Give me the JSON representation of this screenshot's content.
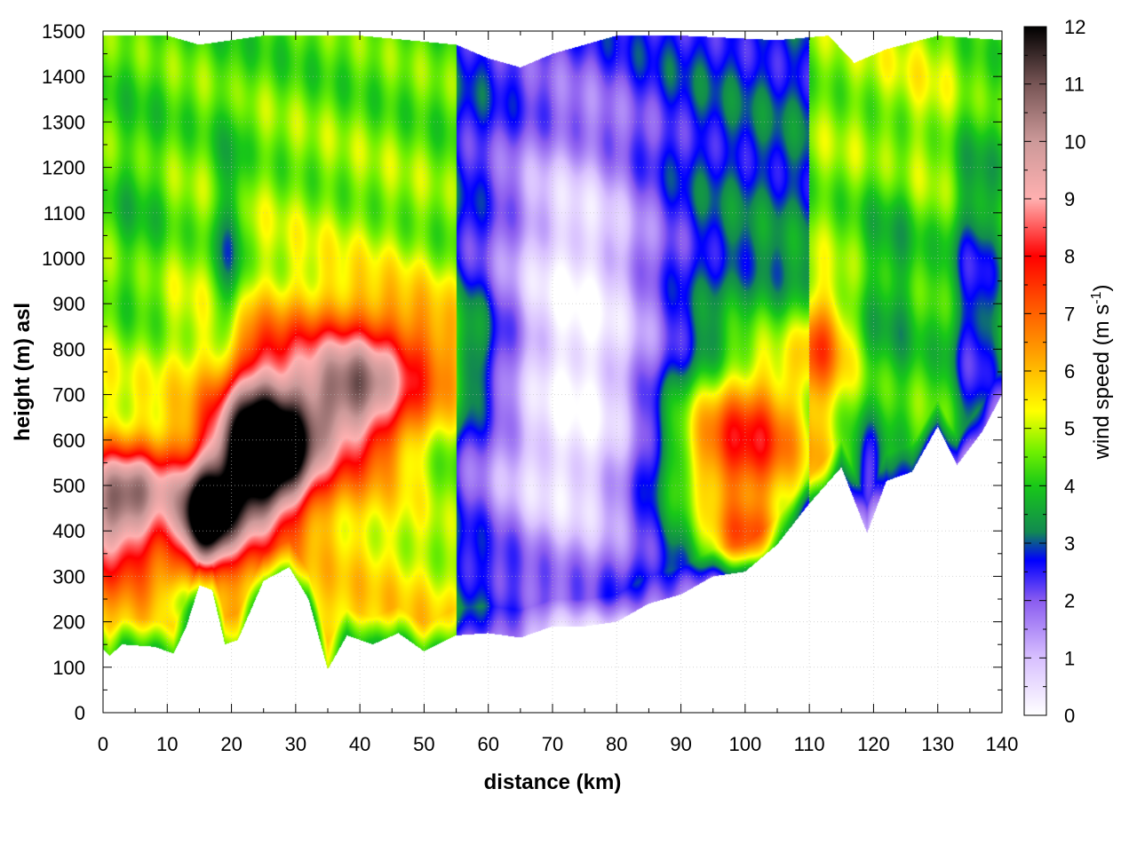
{
  "chart_data": {
    "type": "heatmap",
    "title": "",
    "xlabel": "distance (km)",
    "ylabel": "height (m) asl",
    "xlim": [
      0,
      140
    ],
    "ylim": [
      0,
      1500
    ],
    "x_ticks": [
      0,
      10,
      20,
      30,
      40,
      50,
      60,
      70,
      80,
      90,
      100,
      110,
      120,
      130,
      140
    ],
    "y_ticks": [
      0,
      100,
      200,
      300,
      400,
      500,
      600,
      700,
      800,
      900,
      1000,
      1100,
      1200,
      1300,
      1400,
      1500
    ],
    "grid": true,
    "colorbar": {
      "label": "wind speed (m s",
      "label_superscript": "-1",
      "label_close": ")",
      "range": [
        0,
        12
      ],
      "ticks": [
        0,
        1,
        2,
        3,
        4,
        5,
        6,
        7,
        8,
        9,
        10,
        11,
        12
      ],
      "colors": [
        {
          "v": 0,
          "c": "#ffffff"
        },
        {
          "v": 1,
          "c": "#d8c0ff"
        },
        {
          "v": 2,
          "c": "#8a5cf0"
        },
        {
          "v": 2.7,
          "c": "#0000ff"
        },
        {
          "v": 3.2,
          "c": "#128a50"
        },
        {
          "v": 4,
          "c": "#18c818"
        },
        {
          "v": 4.6,
          "c": "#70f000"
        },
        {
          "v": 5.3,
          "c": "#ffff00"
        },
        {
          "v": 6.3,
          "c": "#ffa000"
        },
        {
          "v": 7.2,
          "c": "#ff5000"
        },
        {
          "v": 8,
          "c": "#ff0000"
        },
        {
          "v": 9,
          "c": "#ffb0b0"
        },
        {
          "v": 10,
          "c": "#cc9999"
        },
        {
          "v": 11,
          "c": "#775555"
        },
        {
          "v": 12,
          "c": "#000000"
        }
      ]
    },
    "terrain_profile_m": [
      {
        "x": 0,
        "y": 140
      },
      {
        "x": 1,
        "y": 125
      },
      {
        "x": 3,
        "y": 150
      },
      {
        "x": 8,
        "y": 145
      },
      {
        "x": 11,
        "y": 130
      },
      {
        "x": 13,
        "y": 190
      },
      {
        "x": 15,
        "y": 280
      },
      {
        "x": 17,
        "y": 270
      },
      {
        "x": 19,
        "y": 150
      },
      {
        "x": 21,
        "y": 160
      },
      {
        "x": 25,
        "y": 290
      },
      {
        "x": 29,
        "y": 320
      },
      {
        "x": 32,
        "y": 250
      },
      {
        "x": 35,
        "y": 95
      },
      {
        "x": 38,
        "y": 170
      },
      {
        "x": 42,
        "y": 150
      },
      {
        "x": 46,
        "y": 175
      },
      {
        "x": 50,
        "y": 135
      },
      {
        "x": 55,
        "y": 170
      },
      {
        "x": 60,
        "y": 175
      },
      {
        "x": 65,
        "y": 165
      },
      {
        "x": 70,
        "y": 190
      },
      {
        "x": 75,
        "y": 190
      },
      {
        "x": 80,
        "y": 200
      },
      {
        "x": 85,
        "y": 240
      },
      {
        "x": 90,
        "y": 260
      },
      {
        "x": 95,
        "y": 300
      },
      {
        "x": 100,
        "y": 310
      },
      {
        "x": 105,
        "y": 370
      },
      {
        "x": 110,
        "y": 460
      },
      {
        "x": 115,
        "y": 540
      },
      {
        "x": 119,
        "y": 395
      },
      {
        "x": 122,
        "y": 510
      },
      {
        "x": 126,
        "y": 530
      },
      {
        "x": 130,
        "y": 630
      },
      {
        "x": 133,
        "y": 545
      },
      {
        "x": 137,
        "y": 620
      },
      {
        "x": 140,
        "y": 700
      }
    ],
    "top_of_data_m": [
      {
        "x": 0,
        "y": 1490
      },
      {
        "x": 10,
        "y": 1490
      },
      {
        "x": 15,
        "y": 1470
      },
      {
        "x": 25,
        "y": 1490
      },
      {
        "x": 40,
        "y": 1490
      },
      {
        "x": 55,
        "y": 1470
      },
      {
        "x": 60,
        "y": 1440
      },
      {
        "x": 65,
        "y": 1420
      },
      {
        "x": 70,
        "y": 1450
      },
      {
        "x": 80,
        "y": 1490
      },
      {
        "x": 90,
        "y": 1490
      },
      {
        "x": 105,
        "y": 1480
      },
      {
        "x": 113,
        "y": 1490
      },
      {
        "x": 117,
        "y": 1430
      },
      {
        "x": 122,
        "y": 1460
      },
      {
        "x": 130,
        "y": 1490
      },
      {
        "x": 140,
        "y": 1480
      }
    ],
    "wind_speed_features": [
      {
        "x": 2,
        "y": 430,
        "sx": 6,
        "sy": 90,
        "amp": 4.5
      },
      {
        "x": 6,
        "y": 520,
        "sx": 6,
        "sy": 60,
        "amp": 2.0
      },
      {
        "x": 16,
        "y": 430,
        "sx": 3,
        "sy": 80,
        "amp": 7.0
      },
      {
        "x": 22,
        "y": 560,
        "sx": 4,
        "sy": 130,
        "amp": 6.0
      },
      {
        "x": 28,
        "y": 560,
        "sx": 4,
        "sy": 90,
        "amp": 5.0
      },
      {
        "x": 33,
        "y": 700,
        "sx": 9,
        "sy": 130,
        "amp": 3.5
      },
      {
        "x": 40,
        "y": 700,
        "sx": 5,
        "sy": 100,
        "amp": 2.5
      },
      {
        "x": 51,
        "y": 780,
        "sx": 8,
        "sy": 100,
        "amp": 1.8
      },
      {
        "x": 20,
        "y": 1000,
        "sx": 1.2,
        "sy": 200,
        "amp": -1.5
      },
      {
        "x": 18,
        "y": 850,
        "sx": 2,
        "sy": 250,
        "amp": -0.7
      },
      {
        "x": 12,
        "y": 240,
        "sx": 2,
        "sy": 40,
        "amp": -1.5
      },
      {
        "x": 74,
        "y": 700,
        "sx": 10,
        "sy": 400,
        "amp": -3.0
      },
      {
        "x": 72,
        "y": 1050,
        "sx": 8,
        "sy": 200,
        "amp": -0.7
      },
      {
        "x": 60,
        "y": 500,
        "sx": 12,
        "sy": 150,
        "amp": -0.8
      },
      {
        "x": 97,
        "y": 580,
        "sx": 7,
        "sy": 110,
        "amp": 3.3
      },
      {
        "x": 104,
        "y": 650,
        "sx": 6,
        "sy": 160,
        "amp": 2.0
      },
      {
        "x": 112,
        "y": 820,
        "sx": 3,
        "sy": 80,
        "amp": 2.0
      },
      {
        "x": 100,
        "y": 380,
        "sx": 4,
        "sy": 60,
        "amp": 2.5
      },
      {
        "x": 119,
        "y": 500,
        "sx": 2,
        "sy": 90,
        "amp": -2.5
      },
      {
        "x": 136,
        "y": 850,
        "sx": 3,
        "sy": 300,
        "amp": -2.2
      },
      {
        "x": 123,
        "y": 1000,
        "sx": 4,
        "sy": 250,
        "amp": -1.2
      },
      {
        "x": 125,
        "y": 1300,
        "sx": 6,
        "sy": 200,
        "amp": 0.8
      },
      {
        "x": 5,
        "y": 1050,
        "sx": 4,
        "sy": 200,
        "amp": -0.8
      }
    ]
  }
}
